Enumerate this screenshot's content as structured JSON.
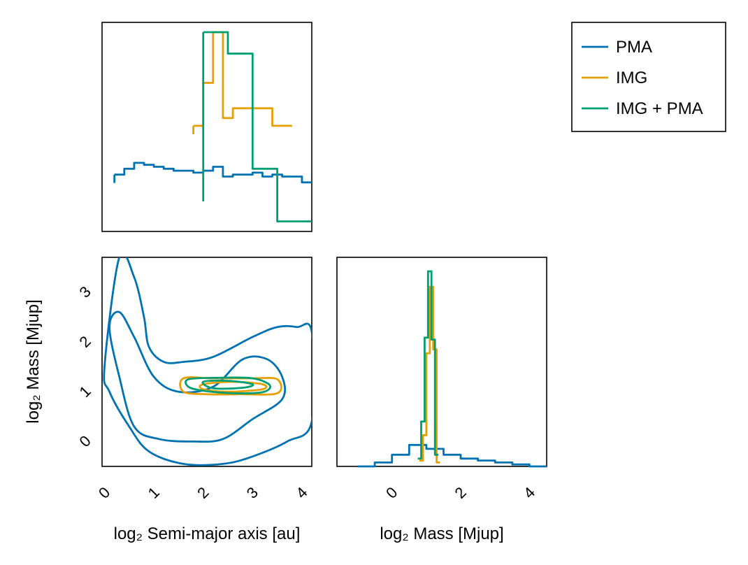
{
  "colors": {
    "PMA": "#0072b2",
    "IMG": "#e69f00",
    "IMG + PMA": "#009e73"
  },
  "chart_data": [
    {
      "type": "line",
      "panel": "marginal-semimajor-axis",
      "title": "",
      "series": [
        {
          "name": "PMA",
          "x": [
            0.2,
            0.4,
            0.6,
            0.8,
            1.0,
            1.2,
            1.4,
            1.6,
            1.8,
            2.0,
            2.2,
            2.4,
            2.6,
            2.8,
            3.0,
            3.2,
            3.4,
            3.6,
            3.8,
            4.0,
            4.2
          ],
          "y": [
            0.27,
            0.3,
            0.33,
            0.32,
            0.31,
            0.3,
            0.29,
            0.29,
            0.28,
            0.29,
            0.31,
            0.26,
            0.27,
            0.27,
            0.28,
            0.26,
            0.27,
            0.26,
            0.26,
            0.23,
            0.23
          ]
        },
        {
          "name": "IMG",
          "x": [
            1.8,
            2.0,
            2.2,
            2.4,
            2.6,
            2.8,
            3.0,
            3.2,
            3.4,
            3.6
          ],
          "y": [
            0.52,
            0.74,
            1.0,
            0.56,
            0.61,
            0.61,
            0.61,
            0.61,
            0.52,
            0.52
          ]
        },
        {
          "name": "IMG + PMA",
          "x": [
            2.0,
            2.5,
            3.0,
            3.5,
            4.0
          ],
          "y": [
            1.0,
            0.89,
            0.3,
            0.03,
            0.03
          ]
        }
      ],
      "xlim": [
        -0.05,
        4.2
      ]
    },
    {
      "type": "line",
      "panel": "marginal-mass",
      "xlabel": "log₂ Mass [Mjup]",
      "xticks": [
        "0",
        "2",
        "4"
      ],
      "xlim": [
        -1.6,
        4.5
      ],
      "series": [
        {
          "name": "PMA",
          "x": [
            -1.0,
            -0.5,
            0.0,
            0.5,
            1.0,
            1.5,
            2.0,
            2.5,
            3.0,
            3.5,
            4.0
          ],
          "y": [
            0.0,
            0.02,
            0.06,
            0.11,
            0.09,
            0.06,
            0.04,
            0.03,
            0.02,
            0.01,
            0.0
          ]
        },
        {
          "name": "IMG",
          "x": [
            0.8,
            0.9,
            1.0,
            1.1,
            1.2,
            1.3
          ],
          "y": [
            0.03,
            0.16,
            0.58,
            0.92,
            0.6,
            0.02
          ]
        },
        {
          "name": "IMG + PMA",
          "x": [
            0.75,
            0.85,
            0.95,
            1.05,
            1.15,
            1.25
          ],
          "y": [
            0.04,
            0.23,
            0.66,
            1.0,
            0.65,
            0.06
          ]
        }
      ]
    },
    {
      "type": "contour",
      "panel": "joint",
      "xlabel": "log₂ Semi-major axis [au]",
      "ylabel": "log₂ Mass [Mjup]",
      "xticks": [
        "0",
        "1",
        "2",
        "3",
        "4"
      ],
      "yticks": [
        "0",
        "1",
        "2",
        "3"
      ],
      "xlim": [
        -0.05,
        4.2
      ],
      "ylim": [
        -0.5,
        3.7
      ],
      "series": [
        {
          "name": "PMA",
          "level": "outer",
          "x": [
            0.0,
            0.3,
            0.6,
            0.8,
            0.9,
            1.2,
            1.6,
            2.2,
            3.0,
            3.5,
            3.9,
            4.2,
            4.2,
            3.7,
            3.0,
            2.4,
            1.6,
            0.9,
            0.5,
            0.1,
            0.0
          ],
          "y": [
            1.5,
            3.7,
            3.3,
            2.5,
            1.9,
            1.6,
            1.6,
            1.7,
            2.1,
            2.3,
            2.3,
            2.2,
            0.4,
            0.0,
            -0.3,
            -0.45,
            -0.45,
            -0.2,
            0.3,
            1.0,
            1.5
          ]
        },
        {
          "name": "PMA",
          "level": "inner",
          "x": [
            0.1,
            0.3,
            0.6,
            1.0,
            1.5,
            2.2,
            2.8,
            3.3,
            3.6,
            3.6,
            3.0,
            2.4,
            1.8,
            1.1,
            0.6,
            0.3,
            0.1
          ],
          "y": [
            2.3,
            2.6,
            2.1,
            1.3,
            1.0,
            1.1,
            1.65,
            1.65,
            1.3,
            0.85,
            0.45,
            0.05,
            0.0,
            0.05,
            0.3,
            1.3,
            2.3
          ]
        },
        {
          "name": "IMG",
          "level": "outer",
          "x": [
            1.6,
            2.2,
            3.0,
            3.5,
            3.5,
            2.7,
            2.1,
            1.6,
            1.6
          ],
          "y": [
            1.27,
            1.27,
            1.27,
            1.25,
            0.97,
            0.95,
            0.95,
            1.0,
            1.27
          ]
        },
        {
          "name": "IMG",
          "level": "inner",
          "x": [
            2.0,
            2.6,
            3.2,
            3.2,
            2.5,
            2.0,
            2.0
          ],
          "y": [
            1.15,
            1.2,
            1.15,
            1.05,
            1.0,
            1.05,
            1.15
          ]
        },
        {
          "name": "IMG + PMA",
          "level": "outer",
          "x": [
            1.7,
            2.3,
            3.0,
            3.35,
            3.2,
            2.6,
            2.0,
            1.7,
            1.7
          ],
          "y": [
            1.25,
            1.28,
            1.27,
            1.13,
            0.99,
            0.97,
            1.02,
            1.1,
            1.25
          ]
        },
        {
          "name": "IMG + PMA",
          "level": "inner",
          "x": [
            2.0,
            2.5,
            3.0,
            2.8,
            2.2,
            2.0
          ],
          "y": [
            1.2,
            1.22,
            1.15,
            1.08,
            1.07,
            1.2
          ]
        }
      ]
    }
  ],
  "legend": {
    "placement": "top-right",
    "items": [
      {
        "label": "PMA",
        "color": "#0072b2"
      },
      {
        "label": "IMG",
        "color": "#e69f00"
      },
      {
        "label": "IMG + PMA",
        "color": "#009e73"
      }
    ]
  }
}
